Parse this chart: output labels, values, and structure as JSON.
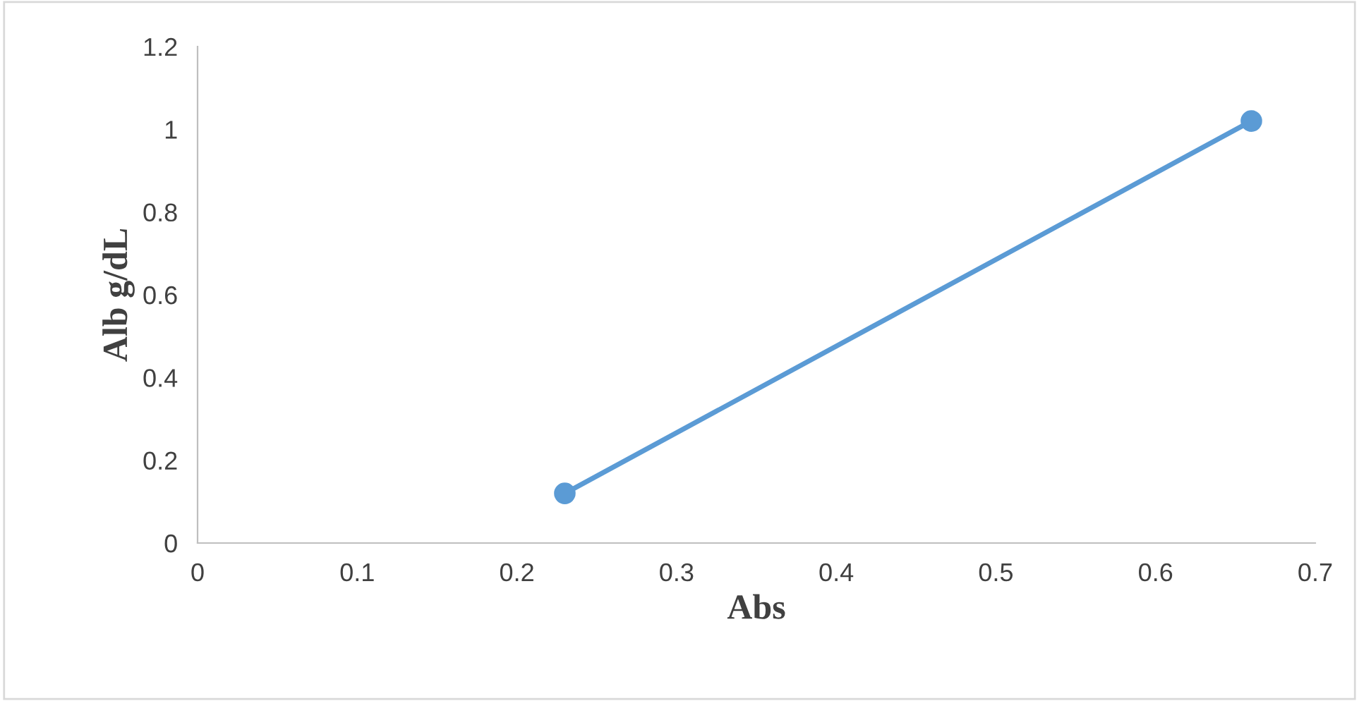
{
  "chart_data": {
    "type": "line",
    "xlabel": "Abs",
    "ylabel": "Alb g/dL",
    "x": [
      0.23,
      0.66
    ],
    "series": [
      {
        "color": "#5b9bd5",
        "values": [
          0.12,
          1.02
        ]
      }
    ],
    "xlim": [
      0,
      0.7
    ],
    "xticks": [
      0,
      0.1,
      0.2,
      0.3,
      0.4,
      0.5,
      0.6,
      0.7
    ],
    "ylim": [
      0,
      1.2
    ],
    "yticks": [
      0,
      0.2,
      0.4,
      0.6,
      0.8,
      1,
      1.2
    ],
    "marker": "circle",
    "line_style": "solid",
    "grid": false,
    "legend": false
  }
}
